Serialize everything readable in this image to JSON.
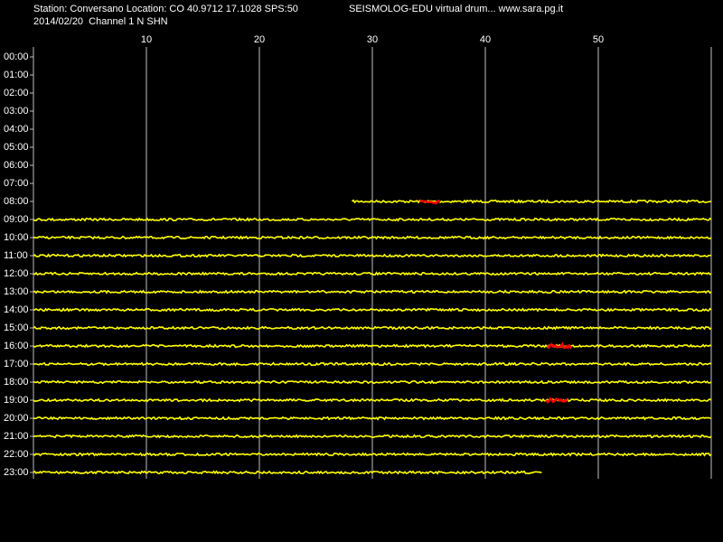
{
  "chart_data": {
    "type": "drum",
    "title": "Station: Conversano Location: CO 40.9712 17.1028 SPS:50",
    "subtitle": "SEISMOLOG-EDU virtual drum... www.sara.pg.it",
    "date_channel": "2014/02/20  Channel 1 N SHN",
    "categories": [
      "00:00",
      "01:00",
      "02:00",
      "03:00",
      "04:00",
      "05:00",
      "06:00",
      "07:00",
      "08:00",
      "09:00",
      "10:00",
      "11:00",
      "12:00",
      "13:00",
      "14:00",
      "15:00",
      "16:00",
      "17:00",
      "18:00",
      "19:00",
      "20:00",
      "21:00",
      "22:00",
      "23:00"
    ],
    "xlim": [
      0,
      60
    ],
    "xticks": [
      10,
      20,
      30,
      40,
      50
    ],
    "grid": true,
    "trace_color": "#ffff00",
    "event_color": "#ff0000",
    "trace_start": [
      null,
      null,
      null,
      null,
      null,
      null,
      null,
      null,
      28.2,
      0,
      0,
      0,
      0,
      0,
      0,
      0,
      0,
      0,
      0,
      0,
      0,
      0,
      0,
      0
    ],
    "trace_end": [
      null,
      null,
      null,
      null,
      null,
      null,
      null,
      null,
      60,
      60,
      60,
      60,
      60,
      60,
      60,
      60,
      60,
      60,
      60,
      60,
      60,
      60,
      60,
      45.0
    ],
    "event_start": [
      null,
      null,
      null,
      null,
      null,
      null,
      null,
      null,
      34.2,
      null,
      null,
      null,
      null,
      null,
      null,
      null,
      45.5,
      null,
      null,
      45.4,
      null,
      null,
      null,
      null
    ],
    "event_end": [
      null,
      null,
      null,
      null,
      null,
      null,
      null,
      null,
      36.0,
      null,
      null,
      null,
      null,
      null,
      null,
      null,
      47.6,
      null,
      null,
      47.3,
      null,
      null,
      null,
      null
    ]
  }
}
